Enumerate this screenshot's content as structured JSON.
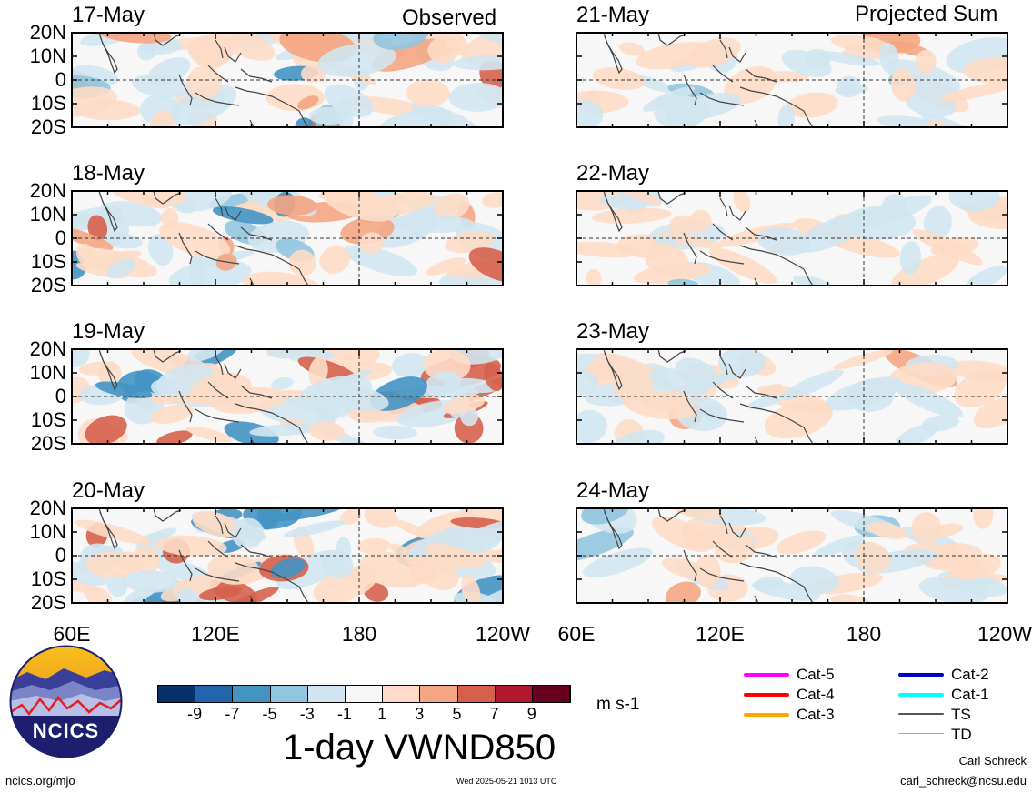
{
  "headers": {
    "left": "Observed",
    "right": "Projected Sum"
  },
  "observed_dates": [
    "17-May",
    "18-May",
    "19-May",
    "20-May"
  ],
  "projected_dates": [
    "21-May",
    "22-May",
    "23-May",
    "24-May"
  ],
  "lat_labels": [
    "20N",
    "10N",
    "0",
    "10S",
    "20S"
  ],
  "lon_labels": [
    "60E",
    "120E",
    "180",
    "120W"
  ],
  "colorbar": {
    "colors": [
      "#08306b",
      "#2166ac",
      "#4393c3",
      "#92c5de",
      "#d1e5f0",
      "#f7f7f7",
      "#fddbc7",
      "#f4a582",
      "#d6604d",
      "#b2182b",
      "#67001f"
    ],
    "ticks": [
      "-9",
      "-7",
      "-5",
      "-3",
      "-1",
      "1",
      "3",
      "5",
      "7",
      "9"
    ],
    "units": "m s-1",
    "title": "1-day VWND850"
  },
  "legend": [
    {
      "label": "Cat-5",
      "color": "#ff00ff"
    },
    {
      "label": "Cat-4",
      "color": "#ff0000"
    },
    {
      "label": "Cat-3",
      "color": "#ffa500"
    },
    {
      "label": "Cat-2",
      "color": "#0000cc"
    },
    {
      "label": "Cat-1",
      "color": "#00ffff"
    },
    {
      "label": "TS",
      "color": "#555555"
    },
    {
      "label": "TD",
      "color": "#aaaaaa"
    }
  ],
  "logo": {
    "text": "NCICS"
  },
  "footer": {
    "left": "ncics.org/mjo",
    "center": "Wed 2025-05-21 1013 UTC",
    "author": "Carl Schreck",
    "email": "carl_schreck@ncsu.edu"
  },
  "chart_data": [
    {
      "type": "heatmap",
      "panel": "observed",
      "date": "17-May",
      "variable": "1-day VWND850",
      "units": "m s-1",
      "xlim": [
        "60E",
        "120W"
      ],
      "ylim": [
        "20S",
        "20N"
      ]
    },
    {
      "type": "heatmap",
      "panel": "observed",
      "date": "18-May",
      "variable": "1-day VWND850",
      "units": "m s-1",
      "xlim": [
        "60E",
        "120W"
      ],
      "ylim": [
        "20S",
        "20N"
      ]
    },
    {
      "type": "heatmap",
      "panel": "observed",
      "date": "19-May",
      "variable": "1-day VWND850",
      "units": "m s-1",
      "xlim": [
        "60E",
        "120W"
      ],
      "ylim": [
        "20S",
        "20N"
      ]
    },
    {
      "type": "heatmap",
      "panel": "observed",
      "date": "20-May",
      "variable": "1-day VWND850",
      "units": "m s-1",
      "xlim": [
        "60E",
        "120W"
      ],
      "ylim": [
        "20S",
        "20N"
      ]
    },
    {
      "type": "heatmap",
      "panel": "projected",
      "date": "21-May",
      "variable": "1-day VWND850",
      "units": "m s-1",
      "xlim": [
        "60E",
        "120W"
      ],
      "ylim": [
        "20S",
        "20N"
      ]
    },
    {
      "type": "heatmap",
      "panel": "projected",
      "date": "22-May",
      "variable": "1-day VWND850",
      "units": "m s-1",
      "xlim": [
        "60E",
        "120W"
      ],
      "ylim": [
        "20S",
        "20N"
      ]
    },
    {
      "type": "heatmap",
      "panel": "projected",
      "date": "23-May",
      "variable": "1-day VWND850",
      "units": "m s-1",
      "xlim": [
        "60E",
        "120W"
      ],
      "ylim": [
        "20S",
        "20N"
      ]
    },
    {
      "type": "heatmap",
      "panel": "projected",
      "date": "24-May",
      "variable": "1-day VWND850",
      "units": "m s-1",
      "xlim": [
        "60E",
        "120W"
      ],
      "ylim": [
        "20S",
        "20N"
      ]
    }
  ]
}
